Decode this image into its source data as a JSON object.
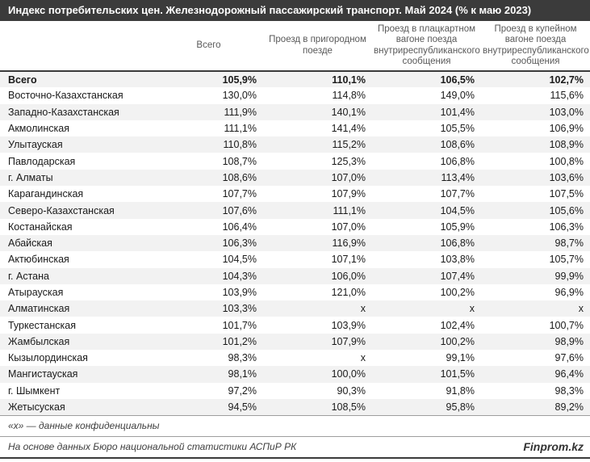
{
  "title": "Индекс потребительских цен. Железнодорожный пассажирский транспорт. Май 2024 (% к маю 2023)",
  "table": {
    "columns": [
      "",
      "Всего",
      "Проезд в пригородном поезде",
      "Проезд в плацкартном вагоне поезда внутриреспубликанского сообщения",
      "Проезд в купейном вагоне поезда внутриреспубликанского сообщения"
    ],
    "rows": [
      {
        "region": "Всего",
        "values": [
          "105,9%",
          "110,1%",
          "106,5%",
          "102,7%"
        ],
        "bold": true
      },
      {
        "region": "Восточно-Казахстанская",
        "values": [
          "130,0%",
          "114,8%",
          "149,0%",
          "115,6%"
        ],
        "bold": false
      },
      {
        "region": "Западно-Казахстанская",
        "values": [
          "111,9%",
          "140,1%",
          "101,4%",
          "103,0%"
        ],
        "bold": false
      },
      {
        "region": "Акмолинская",
        "values": [
          "111,1%",
          "141,4%",
          "105,5%",
          "106,9%"
        ],
        "bold": false
      },
      {
        "region": "Улытауская",
        "values": [
          "110,8%",
          "115,2%",
          "108,6%",
          "108,9%"
        ],
        "bold": false
      },
      {
        "region": "Павлодарская",
        "values": [
          "108,7%",
          "125,3%",
          "106,8%",
          "100,8%"
        ],
        "bold": false
      },
      {
        "region": "г. Алматы",
        "values": [
          "108,6%",
          "107,0%",
          "113,4%",
          "103,6%"
        ],
        "bold": false
      },
      {
        "region": "Карагандинская",
        "values": [
          "107,7%",
          "107,9%",
          "107,7%",
          "107,5%"
        ],
        "bold": false
      },
      {
        "region": "Северо-Казахстанская",
        "values": [
          "107,6%",
          "111,1%",
          "104,5%",
          "105,6%"
        ],
        "bold": false
      },
      {
        "region": "Костанайская",
        "values": [
          "106,4%",
          "107,0%",
          "105,9%",
          "106,3%"
        ],
        "bold": false
      },
      {
        "region": "Абайская",
        "values": [
          "106,3%",
          "116,9%",
          "106,8%",
          "98,7%"
        ],
        "bold": false
      },
      {
        "region": "Актюбинская",
        "values": [
          "104,5%",
          "107,1%",
          "103,8%",
          "105,7%"
        ],
        "bold": false
      },
      {
        "region": "г. Астана",
        "values": [
          "104,3%",
          "106,0%",
          "107,4%",
          "99,9%"
        ],
        "bold": false
      },
      {
        "region": "Атырауская",
        "values": [
          "103,9%",
          "121,0%",
          "100,2%",
          "96,9%"
        ],
        "bold": false
      },
      {
        "region": "Алматинская",
        "values": [
          "103,3%",
          "x",
          "x",
          "x"
        ],
        "bold": false
      },
      {
        "region": "Туркестанская",
        "values": [
          "101,7%",
          "103,9%",
          "102,4%",
          "100,7%"
        ],
        "bold": false
      },
      {
        "region": "Жамбылская",
        "values": [
          "101,2%",
          "107,9%",
          "100,2%",
          "98,9%"
        ],
        "bold": false
      },
      {
        "region": "Кызылординская",
        "values": [
          "98,3%",
          "x",
          "99,1%",
          "97,6%"
        ],
        "bold": false
      },
      {
        "region": "Мангистауская",
        "values": [
          "98,1%",
          "100,0%",
          "101,5%",
          "96,4%"
        ],
        "bold": false
      },
      {
        "region": "г. Шымкент",
        "values": [
          "97,2%",
          "90,3%",
          "91,8%",
          "98,3%"
        ],
        "bold": false
      },
      {
        "region": "Жетысуская",
        "values": [
          "94,5%",
          "108,5%",
          "95,8%",
          "89,2%"
        ],
        "bold": false
      }
    ]
  },
  "footnote": "«х» — данные конфиденциальны",
  "source": "На основе данных Бюро национальной статистики АСПиР РК",
  "brand": "Finprom.kz",
  "colors": {
    "title_bar_bg": "#3b3b3b",
    "title_bar_fg": "#ffffff",
    "zebra_row_bg": "#f2f2f2",
    "dark_border": "#3b3b3b",
    "thin_border": "#9e9e9e",
    "header_text": "#595959",
    "body_text": "#1a1a1a",
    "note_text": "#3f3f3f"
  }
}
